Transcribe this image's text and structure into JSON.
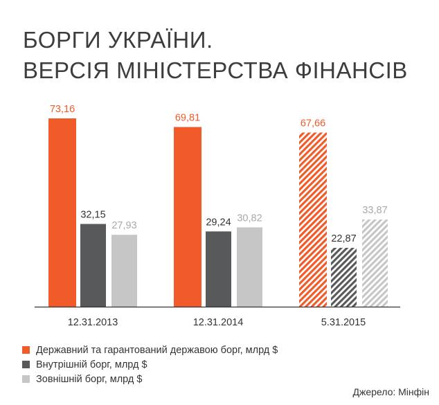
{
  "title_line1": "БОРГИ УКРАЇНИ.",
  "title_line2": "ВЕРСІЯ МІНІСТЕРСТВА ФІНАНСІВ",
  "source": "Джерело: Мінфін",
  "colors": {
    "state_guaranteed": "#f15a29",
    "domestic": "#58595b",
    "external": "#c6c6c7",
    "axis": "#333333"
  },
  "chart_data": {
    "type": "bar",
    "categories": [
      "12.31.2013",
      "12.31.2014",
      "5.31.2015"
    ],
    "series": [
      {
        "name": "Державний та гарантований державою борг, млрд $",
        "values": [
          73.16,
          69.81,
          67.66
        ],
        "labels": [
          "73,16",
          "69,81",
          "67,66"
        ],
        "color": "#f15a29"
      },
      {
        "name": "Внутрішній борг, млрд $",
        "values": [
          32.15,
          29.24,
          22.87
        ],
        "labels": [
          "32,15",
          "29,24",
          "22,87"
        ],
        "color": "#58595b"
      },
      {
        "name": "Зовнішній борг, млрд $",
        "values": [
          27.93,
          30.82,
          33.87
        ],
        "labels": [
          "27,93",
          "30,82",
          "33,87"
        ],
        "color": "#c6c6c7"
      }
    ],
    "hatched_category": "5.31.2015",
    "ylim": [
      0,
      73.16
    ],
    "grid": false,
    "legend_position": "bottom-left"
  }
}
